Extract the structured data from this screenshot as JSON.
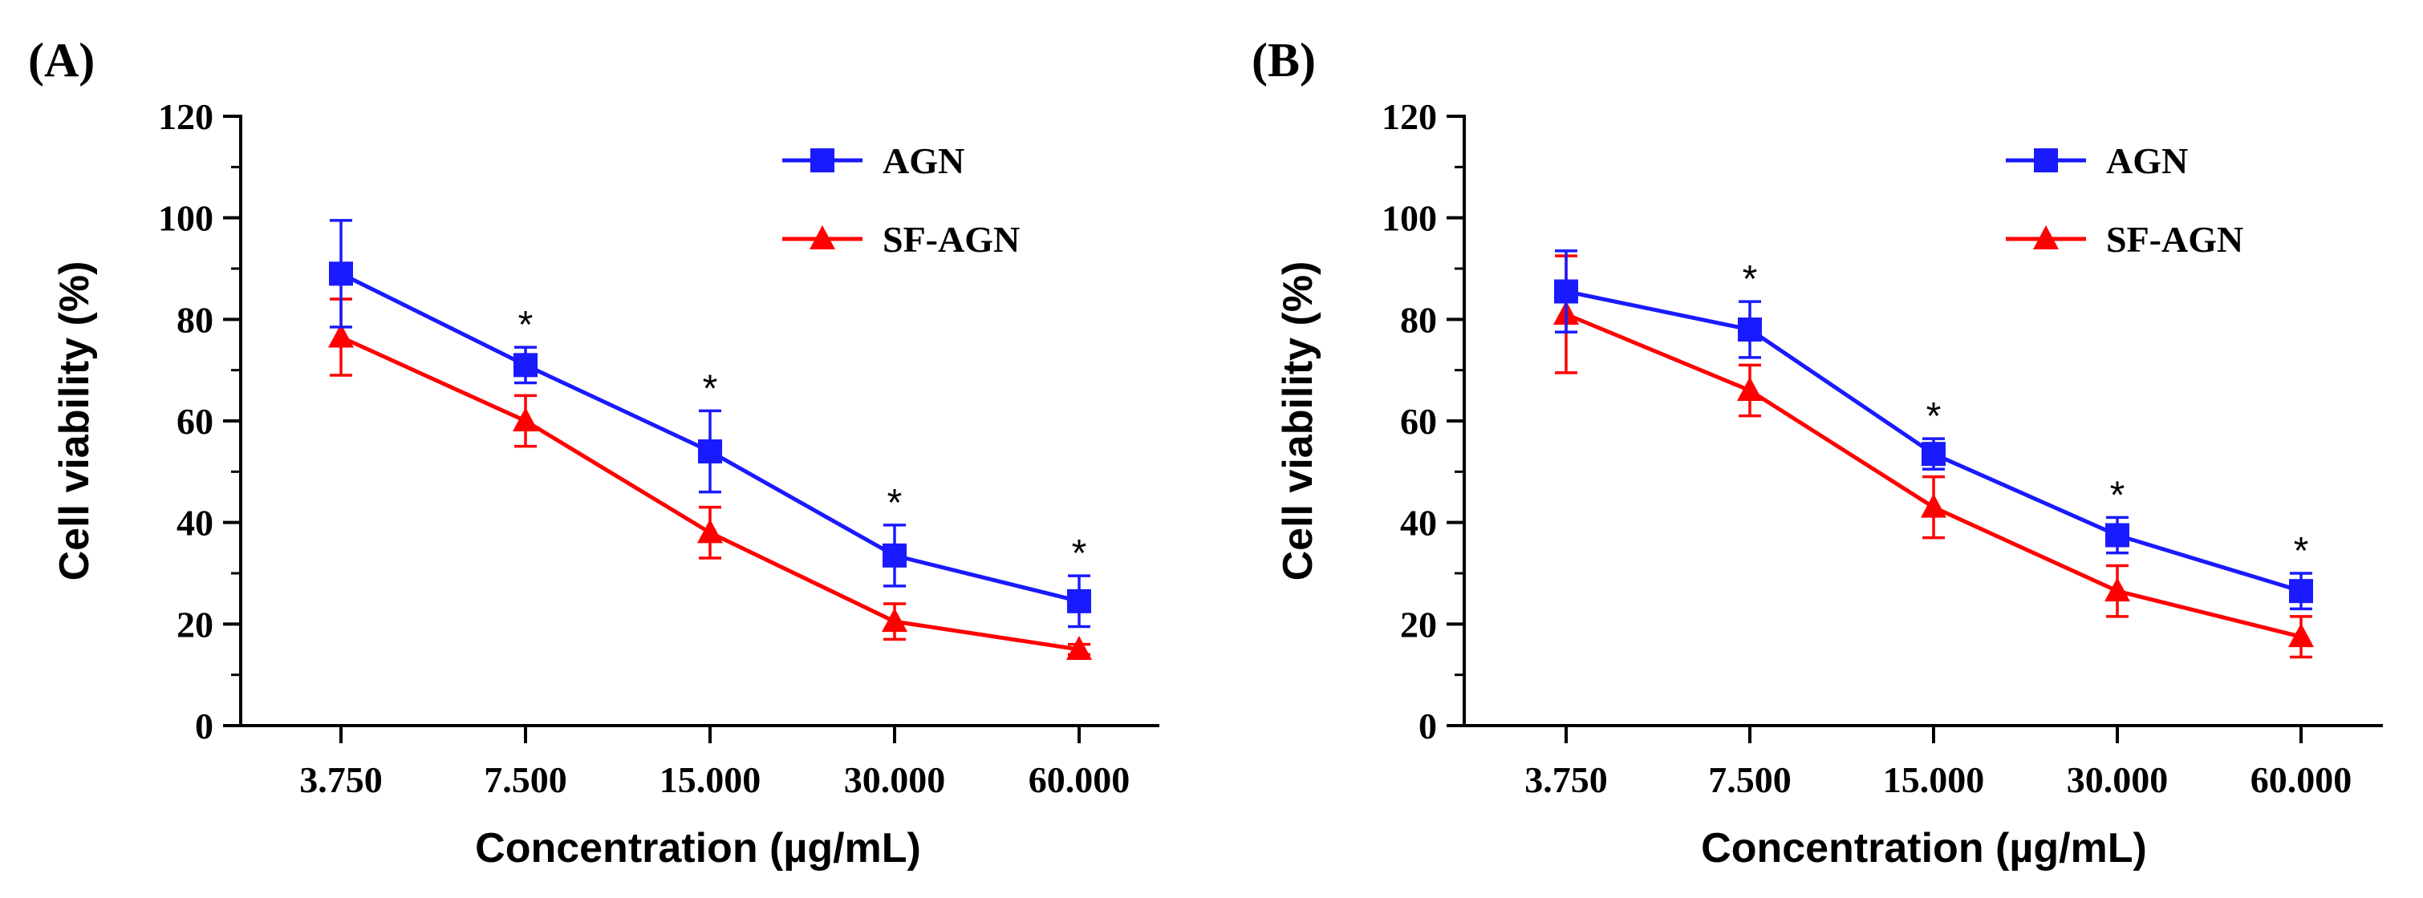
{
  "chart_data": [
    {
      "panel": "(A)",
      "type": "line",
      "xlabel": "Concentration (µg/mL)",
      "ylabel": "Cell viability (%)",
      "categories": [
        "3.750",
        "7.500",
        "15.000",
        "30.000",
        "60.000"
      ],
      "ylim": [
        0,
        120
      ],
      "yticks": [
        "0",
        "20",
        "40",
        "60",
        "80",
        "100",
        "120"
      ],
      "legend_position": "top-right",
      "series": [
        {
          "name": "AGN",
          "color": "#1a1aff",
          "marker": "square",
          "values": [
            89,
            71,
            54,
            33.5,
            24.5
          ],
          "errors": [
            10.5,
            3.5,
            8,
            6,
            5
          ]
        },
        {
          "name": "SF-AGN",
          "color": "#ff0000",
          "marker": "triangle",
          "values": [
            76.5,
            60,
            38,
            20.5,
            15
          ],
          "errors": [
            7.5,
            5,
            5,
            3.5,
            1
          ]
        }
      ],
      "significance": [
        "",
        "*",
        "*",
        "*",
        "*"
      ]
    },
    {
      "panel": "(B)",
      "type": "line",
      "xlabel": "Concentration (µg/mL)",
      "ylabel": "Cell viability (%)",
      "categories": [
        "3.750",
        "7.500",
        "15.000",
        "30.000",
        "60.000"
      ],
      "ylim": [
        0,
        120
      ],
      "yticks": [
        "0",
        "20",
        "40",
        "60",
        "80",
        "100",
        "120"
      ],
      "legend_position": "top-right",
      "series": [
        {
          "name": "AGN",
          "color": "#1a1aff",
          "marker": "square",
          "values": [
            85.5,
            78,
            53.5,
            37.5,
            26.5
          ],
          "errors": [
            8,
            5.5,
            3,
            3.5,
            3.5
          ]
        },
        {
          "name": "SF-AGN",
          "color": "#ff0000",
          "marker": "triangle",
          "values": [
            81,
            66,
            43,
            26.5,
            17.5
          ],
          "errors": [
            11.5,
            5,
            6,
            5,
            4
          ]
        }
      ],
      "significance": [
        "",
        "*",
        "*",
        "*",
        "*"
      ]
    }
  ]
}
